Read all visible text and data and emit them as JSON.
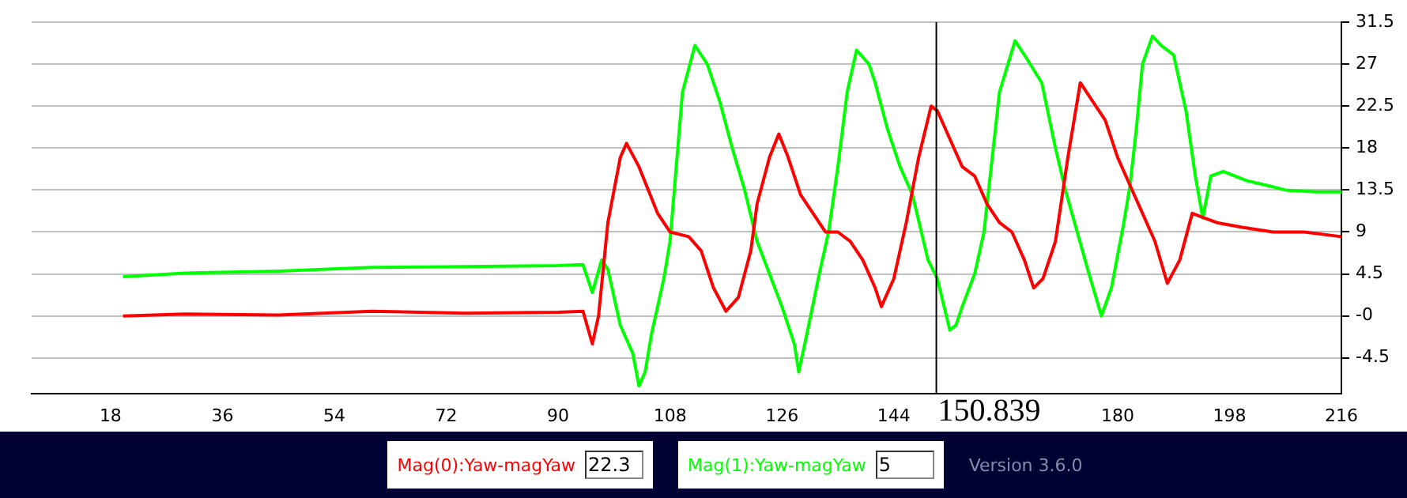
{
  "chart_data": {
    "type": "line",
    "xlim": [
      5.3,
      216
    ],
    "xticks": [
      18,
      36,
      54,
      72,
      90,
      108,
      126,
      144,
      180,
      198,
      216
    ],
    "ylim": [
      -8.3,
      31.5
    ],
    "yticks": [
      -4.5,
      {
        "value": 0,
        "label": "-0"
      },
      4.5,
      9,
      13.5,
      18,
      22.5,
      27,
      31.5
    ],
    "grid": "y",
    "legend": "bottom",
    "marker": "none",
    "line_style": "solid",
    "series": [
      {
        "name": "Mag(0):Yaw-magYaw",
        "color": "#ff0000",
        "x": [
          20,
          30,
          45,
          60,
          75,
          90,
          94,
          95.5,
          96.5,
          98,
          100,
          101,
          103,
          106,
          108,
          111,
          113,
          115,
          117,
          119,
          121,
          122,
          124,
          125.5,
          127,
          129,
          131,
          133,
          135,
          137,
          139,
          141,
          142,
          144,
          146,
          148,
          150,
          151,
          153,
          155,
          157,
          159,
          161,
          163,
          165,
          166.5,
          168,
          170,
          172,
          174,
          176,
          178,
          180,
          182,
          184,
          186,
          188,
          190,
          192,
          194,
          196,
          200,
          205,
          210,
          216
        ],
        "values": [
          0,
          0.2,
          0.1,
          0.5,
          0.3,
          0.4,
          0.5,
          -3,
          0,
          10,
          17,
          18.5,
          16,
          11,
          9,
          8.5,
          7,
          3,
          0.5,
          2,
          7,
          12,
          17,
          19.5,
          17,
          13,
          11,
          9,
          9,
          8,
          6,
          3,
          1,
          4,
          10,
          17,
          22.5,
          22,
          19,
          16,
          15,
          12,
          10,
          9,
          6,
          3,
          4,
          8,
          17,
          25,
          23,
          21,
          17,
          14,
          11,
          8,
          3.5,
          6,
          11,
          10.5,
          10,
          9.5,
          9,
          9,
          8.5
        ]
      },
      {
        "name": "Mag(1):Yaw-magYaw",
        "color": "#00ff00",
        "x": [
          20,
          30,
          45,
          60,
          75,
          90,
          94,
          95.5,
          97,
          98,
          100,
          102,
          103,
          104,
          105,
          106,
          107,
          108,
          109,
          110,
          112,
          114,
          116,
          118,
          120,
          122,
          124,
          126,
          128,
          128.7,
          130,
          132,
          133.5,
          135,
          136.5,
          138,
          140,
          141,
          143,
          145,
          147,
          149.5,
          151,
          153,
          154,
          155,
          157,
          158.5,
          160,
          161,
          163.5,
          165,
          167.8,
          170,
          171.6,
          173.5,
          175.4,
          177.4,
          179,
          181,
          182,
          183,
          184,
          185.6,
          187,
          189,
          191,
          192.5,
          193.7,
          195,
          197,
          200.8,
          204,
          207,
          212,
          216
        ],
        "values": [
          4.2,
          4.6,
          4.8,
          5.2,
          5.3,
          5.4,
          5.5,
          2.5,
          6,
          5,
          -1,
          -4,
          -7.5,
          -6,
          -2,
          1,
          4,
          8,
          16,
          24,
          29,
          27,
          23,
          18,
          13.5,
          8,
          4.5,
          1,
          -3,
          -6,
          -2,
          4.5,
          9,
          16,
          24,
          28.5,
          27,
          25,
          20,
          16,
          13,
          6,
          4,
          -1.5,
          -1,
          1,
          4.5,
          9,
          18,
          24,
          29.5,
          28,
          25,
          18,
          13.5,
          9,
          4.5,
          0,
          3,
          10,
          14,
          20,
          27,
          30,
          29,
          28,
          22,
          15,
          10.5,
          15,
          15.5,
          14.5,
          14,
          13.5,
          13.3,
          13.3
        ]
      }
    ],
    "ref_lines": [
      {
        "axis": "x",
        "value": 150.839,
        "label": "150.839",
        "color": "#000000"
      }
    ],
    "annotations": [
      "22.3",
      "5",
      "Version 3.6.0"
    ]
  }
}
